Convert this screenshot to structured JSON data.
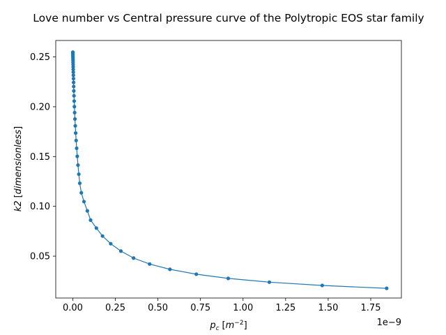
{
  "chart_data": {
    "type": "line",
    "title": "Love number vs Central pressure curve of the Polytropic EOS star family",
    "xlabel": {
      "var": "p",
      "sub": "c",
      "unit_open": "[",
      "unit_base": "m",
      "unit_exp": "−2",
      "unit_close": "]"
    },
    "ylabel": {
      "var": "k2",
      "unit": "dimensionless"
    },
    "x_multiplier_label": "1e−9",
    "x_scale_factor": 1e-09,
    "xlim": [
      -0.1,
      1.93
    ],
    "ylim": [
      0.008,
      0.2665
    ],
    "x_ticks": [
      0.0,
      0.25,
      0.5,
      0.75,
      1.0,
      1.25,
      1.5,
      1.75
    ],
    "x_tick_labels": [
      "0.00",
      "0.25",
      "0.50",
      "0.75",
      "1.00",
      "1.25",
      "1.50",
      "1.75"
    ],
    "y_ticks": [
      0.05,
      0.1,
      0.15,
      0.2,
      0.25
    ],
    "y_tick_labels": [
      "0.05",
      "0.10",
      "0.15",
      "0.20",
      "0.25"
    ],
    "grid": false,
    "legend": "none",
    "color": "#1f77b4",
    "series": [
      {
        "x": [
          0.0003,
          0.0005,
          0.0007,
          0.0009,
          0.0011,
          0.0013,
          0.0015,
          0.0017,
          0.002,
          0.0023,
          0.0026,
          0.003,
          0.0035,
          0.004,
          0.0046,
          0.0053,
          0.0061,
          0.0071,
          0.0082,
          0.0095,
          0.011,
          0.0127,
          0.0147,
          0.017,
          0.0197,
          0.0228,
          0.0264,
          0.0306,
          0.0354,
          0.041,
          0.0503,
          0.0656,
          0.0856,
          0.1046,
          0.1386,
          0.1746,
          0.2227,
          0.2826,
          0.3568,
          0.4514,
          0.5703,
          0.7254,
          0.9129,
          1.1545,
          1.4649,
          1.8434
        ],
        "y": [
          0.2548,
          0.2535,
          0.2522,
          0.2508,
          0.2494,
          0.2479,
          0.2463,
          0.2445,
          0.2424,
          0.2401,
          0.2375,
          0.2347,
          0.2316,
          0.2282,
          0.2244,
          0.2203,
          0.2159,
          0.211,
          0.2057,
          0.2001,
          0.1941,
          0.1877,
          0.1808,
          0.1736,
          0.1661,
          0.1583,
          0.1502,
          0.1414,
          0.1323,
          0.1232,
          0.1136,
          0.1048,
          0.0955,
          0.0862,
          0.0782,
          0.0702,
          0.0625,
          0.0551,
          0.0481,
          0.0421,
          0.0368,
          0.0319,
          0.0277,
          0.0239,
          0.0206,
          0.0177
        ]
      }
    ]
  }
}
